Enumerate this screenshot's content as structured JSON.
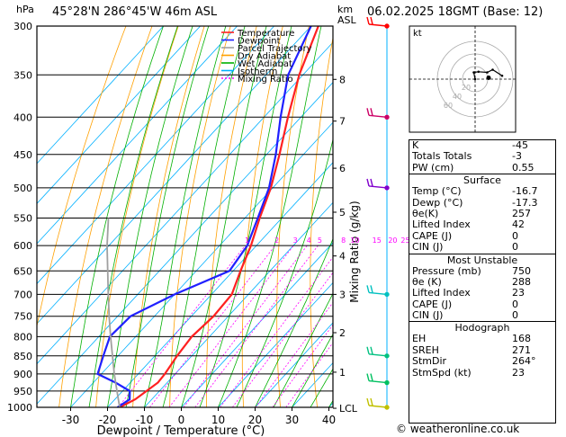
{
  "header": {
    "hpa": "hPa",
    "location": "45°28'N  286°45'W  46m  ASL",
    "km": "km",
    "asl": "ASL",
    "datetime": "06.02.2025  18GMT  (Base: 12)"
  },
  "legend": [
    {
      "label": "Temperature",
      "color": "#ff2020"
    },
    {
      "label": "Dewpoint",
      "color": "#2020ff"
    },
    {
      "label": "Parcel Trajectory",
      "color": "#a0a0a0"
    },
    {
      "label": "Dry Adiabat",
      "color": "#ffa000"
    },
    {
      "label": "Wet Adiabat",
      "color": "#00b000"
    },
    {
      "label": "Isotherm",
      "color": "#00b0ff"
    },
    {
      "label": "Mixing Ratio",
      "color": "#ff00ff"
    }
  ],
  "chart_data": {
    "type": "line",
    "xlabel": "Dewpoint / Temperature (°C)",
    "ylabel": "Mixing Ratio (g/kg)",
    "x_ticks": [
      -30,
      -20,
      -10,
      0,
      10,
      20,
      30,
      40
    ],
    "pressure_levels": [
      300,
      350,
      400,
      450,
      500,
      550,
      600,
      650,
      700,
      750,
      800,
      850,
      900,
      950,
      1000
    ],
    "km_ticks": [
      {
        "label": "8",
        "p": 355
      },
      {
        "label": "7",
        "p": 405
      },
      {
        "label": "6",
        "p": 470
      },
      {
        "label": "5",
        "p": 540
      },
      {
        "label": "4",
        "p": 620
      },
      {
        "label": "3",
        "p": 700
      },
      {
        "label": "2",
        "p": 790
      },
      {
        "label": "1",
        "p": 895
      },
      {
        "label": "LCL",
        "p": 1003
      }
    ],
    "mixing_ratio_labels": [
      "1",
      "2",
      "3",
      "4",
      "5",
      "8",
      "10",
      "15",
      "20",
      "25"
    ],
    "mixing_ratio_values": [
      1,
      2,
      3,
      4,
      5,
      8,
      10,
      15,
      20,
      25
    ],
    "series": [
      {
        "name": "Temperature",
        "color": "#ff2020",
        "points": [
          [
            1000,
            -16.7
          ],
          [
            975,
            -14.5
          ],
          [
            950,
            -13.5
          ],
          [
            925,
            -12.5
          ],
          [
            900,
            -12.8
          ],
          [
            850,
            -14.0
          ],
          [
            800,
            -14.8
          ],
          [
            750,
            -14.0
          ],
          [
            700,
            -14.5
          ],
          [
            650,
            -18.0
          ],
          [
            600,
            -21.5
          ],
          [
            550,
            -26.0
          ],
          [
            500,
            -30.5
          ],
          [
            450,
            -36.5
          ],
          [
            400,
            -43.5
          ],
          [
            350,
            -51.0
          ],
          [
            300,
            -58.0
          ]
        ]
      },
      {
        "name": "Dewpoint",
        "color": "#2020ff",
        "points": [
          [
            1000,
            -17.3
          ],
          [
            975,
            -16.0
          ],
          [
            950,
            -18.0
          ],
          [
            925,
            -24.0
          ],
          [
            900,
            -31.0
          ],
          [
            850,
            -34.0
          ],
          [
            800,
            -37.0
          ],
          [
            750,
            -36.5
          ],
          [
            700,
            -30.0
          ],
          [
            650,
            -21.0
          ],
          [
            600,
            -22.5
          ],
          [
            550,
            -26.5
          ],
          [
            500,
            -31.0
          ],
          [
            450,
            -37.5
          ],
          [
            400,
            -45.5
          ],
          [
            350,
            -54.0
          ],
          [
            300,
            -60.0
          ]
        ]
      },
      {
        "name": "Parcel Trajectory",
        "color": "#a0a0a0",
        "points": [
          [
            1000,
            -16.7
          ],
          [
            950,
            -21.5
          ],
          [
            900,
            -26.5
          ],
          [
            850,
            -31.5
          ],
          [
            800,
            -36.8
          ],
          [
            750,
            -42.3
          ],
          [
            700,
            -48.0
          ],
          [
            650,
            -54.0
          ],
          [
            600,
            -60.5
          ],
          [
            550,
            -67.0
          ]
        ]
      }
    ],
    "wind_barbs": [
      {
        "p": 300,
        "color": "#ff0000"
      },
      {
        "p": 400,
        "color": "#cc0066"
      },
      {
        "p": 500,
        "color": "#8000cc"
      },
      {
        "p": 700,
        "color": "#00c0c0"
      },
      {
        "p": 850,
        "color": "#00c080"
      },
      {
        "p": 925,
        "color": "#00c060"
      },
      {
        "p": 1000,
        "color": "#c0c000"
      }
    ]
  },
  "indices": {
    "rows": [
      {
        "label": "K",
        "value": "-45"
      },
      {
        "label": "Totals Totals",
        "value": "-3"
      },
      {
        "label": "PW (cm)",
        "value": "0.55"
      }
    ]
  },
  "surface": {
    "title": "Surface",
    "rows": [
      {
        "label": "Temp (°C)",
        "value": "-16.7"
      },
      {
        "label": "Dewp (°C)",
        "value": "-17.3"
      },
      {
        "label": "θe(K)",
        "value": "257"
      },
      {
        "label": "Lifted Index",
        "value": "42"
      },
      {
        "label": "CAPE (J)",
        "value": "0"
      },
      {
        "label": "CIN (J)",
        "value": "0"
      }
    ]
  },
  "most_unstable": {
    "title": "Most Unstable",
    "rows": [
      {
        "label": "Pressure (mb)",
        "value": "750"
      },
      {
        "label": "θe (K)",
        "value": "288"
      },
      {
        "label": "Lifted Index",
        "value": "23"
      },
      {
        "label": "CAPE (J)",
        "value": "0"
      },
      {
        "label": "CIN (J)",
        "value": "0"
      }
    ]
  },
  "hodograph_table": {
    "title": "Hodograph",
    "rows": [
      {
        "label": "EH",
        "value": "168"
      },
      {
        "label": "SREH",
        "value": "271"
      },
      {
        "label": "StmDir",
        "value": "264°"
      },
      {
        "label": "StmSpd (kt)",
        "value": "23"
      }
    ]
  },
  "hodograph": {
    "label": "kt",
    "ring_labels": [
      "20",
      "40",
      "60"
    ],
    "trace": [
      [
        0,
        0
      ],
      [
        -2,
        10
      ],
      [
        5,
        11
      ],
      [
        18,
        10
      ],
      [
        26,
        14
      ],
      [
        40,
        5
      ]
    ],
    "storm_motion": [
      20,
      2
    ]
  },
  "copyright": "© weatheronline.co.uk"
}
